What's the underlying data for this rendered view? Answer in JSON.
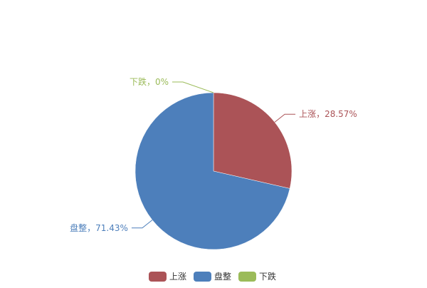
{
  "chart_data": {
    "type": "pie",
    "title": "",
    "slices": [
      {
        "name": "上涨",
        "percent": 28.57,
        "label": "上涨，28.57%",
        "color": "#ab5357"
      },
      {
        "name": "盘整",
        "percent": 71.43,
        "label": "盘整，71.43%",
        "color": "#4d7fbb"
      },
      {
        "name": "下跌",
        "percent": 0,
        "label": "下跌，0%",
        "color": "#9bbb59"
      }
    ],
    "legend": {
      "placement": "bottom",
      "items": [
        "上涨",
        "盘整",
        "下跌"
      ]
    }
  }
}
